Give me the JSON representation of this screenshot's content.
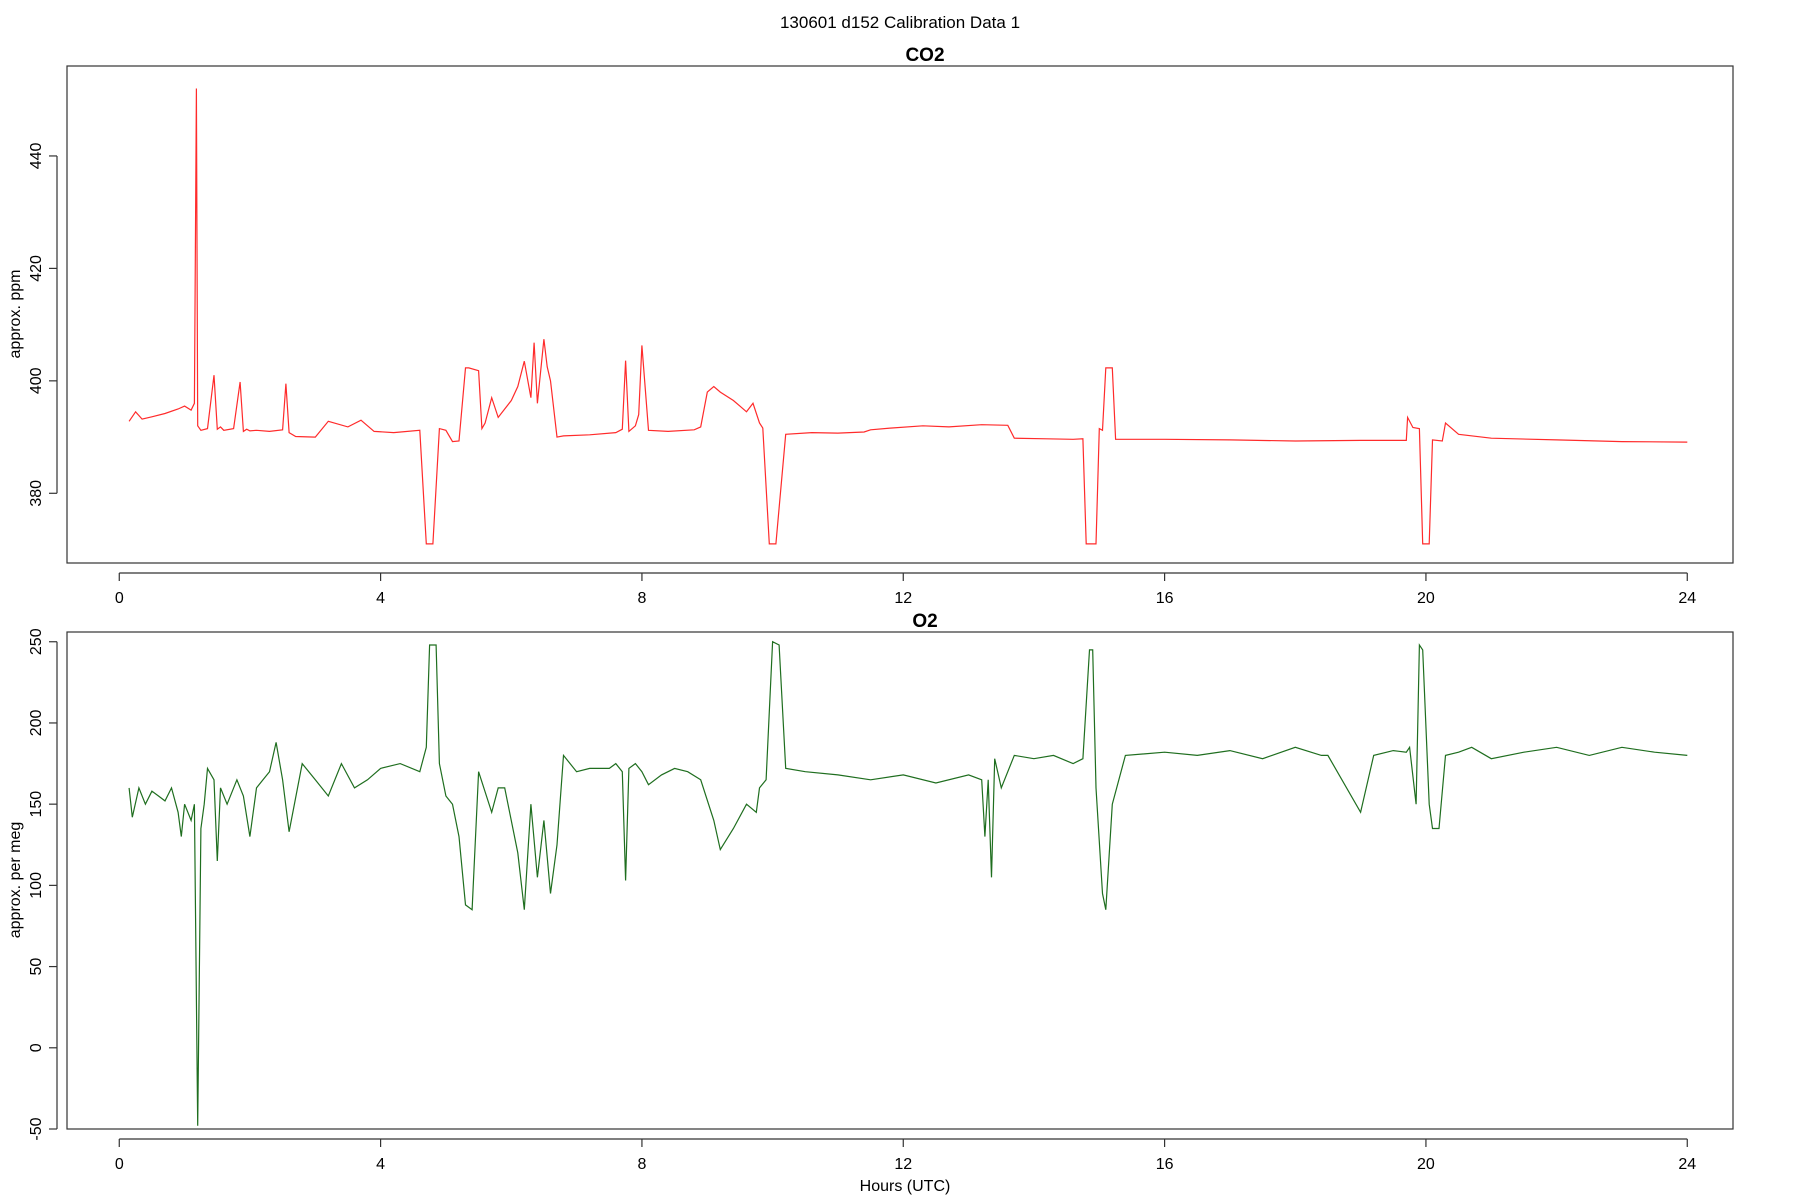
{
  "page": {
    "suptitle": "130601   d152   Calibration Data 1"
  },
  "chart_data": [
    {
      "type": "line",
      "title": "CO2",
      "xlabel": "",
      "ylabel": "approx. ppm",
      "xlim": [
        -0.8,
        24.7
      ],
      "ylim": [
        367.6,
        456
      ],
      "xticks": [
        0,
        4,
        8,
        12,
        16,
        20,
        24
      ],
      "yticks": [
        380,
        400,
        420,
        440
      ],
      "grid": false,
      "color": "#ff2b2b",
      "x": [
        0.15,
        0.25,
        0.35,
        0.5,
        0.7,
        0.9,
        1.0,
        1.1,
        1.15,
        1.18,
        1.2,
        1.25,
        1.35,
        1.45,
        1.5,
        1.55,
        1.6,
        1.75,
        1.85,
        1.9,
        1.95,
        2.0,
        2.1,
        2.3,
        2.5,
        2.55,
        2.6,
        2.7,
        3.0,
        3.2,
        3.5,
        3.7,
        3.9,
        4.2,
        4.6,
        4.7,
        4.8,
        4.9,
        5.0,
        5.1,
        5.2,
        5.3,
        5.35,
        5.5,
        5.55,
        5.6,
        5.7,
        5.8,
        5.9,
        6.0,
        6.1,
        6.2,
        6.3,
        6.35,
        6.4,
        6.5,
        6.55,
        6.6,
        6.7,
        6.8,
        7.2,
        7.6,
        7.7,
        7.75,
        7.8,
        7.9,
        7.95,
        8.0,
        8.1,
        8.4,
        8.8,
        8.9,
        9.0,
        9.1,
        9.2,
        9.4,
        9.5,
        9.6,
        9.7,
        9.8,
        9.85,
        9.95,
        10.05,
        10.2,
        10.6,
        11.0,
        11.4,
        11.5,
        11.8,
        12.3,
        12.7,
        13.2,
        13.6,
        13.7,
        14.2,
        14.6,
        14.75,
        14.8,
        14.95,
        15.0,
        15.05,
        15.1,
        15.2,
        15.25,
        16.0,
        17.0,
        18.0,
        19.0,
        19.7,
        19.72,
        19.8,
        19.9,
        19.95,
        20.05,
        20.1,
        20.25,
        20.3,
        20.5,
        21.0,
        22.0,
        23.0,
        24.0
      ],
      "y": [
        392.8,
        394.5,
        393.2,
        393.6,
        394.2,
        395.0,
        395.5,
        394.8,
        396.0,
        452.0,
        392.0,
        391.2,
        391.5,
        401.0,
        391.4,
        391.8,
        391.2,
        391.5,
        399.8,
        391.0,
        391.4,
        391.1,
        391.2,
        391.0,
        391.3,
        399.5,
        390.8,
        390.1,
        390.0,
        392.8,
        391.8,
        393.0,
        391.0,
        390.8,
        391.2,
        371.0,
        371.0,
        391.5,
        391.2,
        389.2,
        389.3,
        402.3,
        402.3,
        401.8,
        391.5,
        392.5,
        397.0,
        393.5,
        395.0,
        396.5,
        399.0,
        403.5,
        397.0,
        406.8,
        396.0,
        407.4,
        402.5,
        400.0,
        390.0,
        390.2,
        390.4,
        390.8,
        391.4,
        403.6,
        391.0,
        392.0,
        394.0,
        406.3,
        391.2,
        391.0,
        391.3,
        391.8,
        398.0,
        399.0,
        398.0,
        396.5,
        395.5,
        394.5,
        396.0,
        392.5,
        391.6,
        371.0,
        371.0,
        390.5,
        390.8,
        390.7,
        390.9,
        391.3,
        391.6,
        392.0,
        391.8,
        392.2,
        392.1,
        389.8,
        389.7,
        389.6,
        389.7,
        371.0,
        371.0,
        391.5,
        391.2,
        402.3,
        402.3,
        389.6,
        389.6,
        389.5,
        389.3,
        389.4,
        389.4,
        393.5,
        391.7,
        391.5,
        371.0,
        371.0,
        389.5,
        389.3,
        392.5,
        390.5,
        389.8,
        389.5,
        389.2,
        389.1
      ]
    },
    {
      "type": "line",
      "title": "O2",
      "xlabel": "Hours (UTC)",
      "ylabel": "approx. per meg",
      "xlim": [
        -0.8,
        24.7
      ],
      "ylim": [
        -50,
        256
      ],
      "xticks": [
        0,
        4,
        8,
        12,
        16,
        20,
        24
      ],
      "yticks": [
        -50,
        0,
        50,
        100,
        150,
        200,
        250
      ],
      "grid": false,
      "color": "#1f6e1f",
      "x": [
        0.15,
        0.2,
        0.3,
        0.4,
        0.5,
        0.6,
        0.7,
        0.8,
        0.9,
        0.95,
        1.0,
        1.1,
        1.15,
        1.2,
        1.25,
        1.3,
        1.35,
        1.45,
        1.5,
        1.55,
        1.65,
        1.8,
        1.9,
        2.0,
        2.1,
        2.2,
        2.3,
        2.4,
        2.5,
        2.6,
        2.8,
        3.0,
        3.2,
        3.4,
        3.6,
        3.8,
        4.0,
        4.3,
        4.6,
        4.7,
        4.75,
        4.85,
        4.9,
        5.0,
        5.1,
        5.2,
        5.3,
        5.4,
        5.5,
        5.7,
        5.8,
        5.9,
        6.1,
        6.2,
        6.3,
        6.4,
        6.5,
        6.6,
        6.7,
        6.8,
        7.0,
        7.2,
        7.5,
        7.6,
        7.7,
        7.75,
        7.8,
        7.9,
        8.0,
        8.1,
        8.3,
        8.5,
        8.7,
        8.9,
        9.1,
        9.2,
        9.4,
        9.6,
        9.75,
        9.8,
        9.9,
        10.0,
        10.1,
        10.2,
        10.5,
        11.0,
        11.5,
        12.0,
        12.5,
        13.0,
        13.2,
        13.25,
        13.3,
        13.35,
        13.4,
        13.5,
        13.7,
        14.0,
        14.3,
        14.6,
        14.75,
        14.85,
        14.9,
        14.95,
        15.05,
        15.1,
        15.2,
        15.4,
        16.0,
        16.5,
        17.0,
        17.5,
        18.0,
        18.4,
        18.5,
        19.0,
        19.2,
        19.5,
        19.7,
        19.75,
        19.85,
        19.9,
        19.95,
        20.05,
        20.1,
        20.2,
        20.3,
        20.5,
        20.7,
        21.0,
        21.5,
        22.0,
        22.5,
        23.0,
        23.5,
        24.0
      ],
      "y": [
        160,
        142,
        160,
        150,
        158,
        155,
        152,
        160,
        145,
        130,
        150,
        140,
        150,
        -48,
        135,
        150,
        172,
        165,
        115,
        160,
        150,
        165,
        155,
        130,
        160,
        165,
        170,
        188,
        165,
        133,
        175,
        165,
        155,
        175,
        160,
        165,
        172,
        175,
        170,
        185,
        248,
        248,
        175,
        155,
        150,
        130,
        88,
        85,
        170,
        145,
        160,
        160,
        120,
        85,
        150,
        105,
        140,
        95,
        125,
        180,
        170,
        172,
        172,
        175,
        170,
        103,
        172,
        175,
        170,
        162,
        168,
        172,
        170,
        165,
        140,
        122,
        135,
        150,
        145,
        160,
        165,
        250,
        248,
        172,
        170,
        168,
        165,
        168,
        163,
        168,
        165,
        130,
        165,
        105,
        178,
        160,
        180,
        178,
        180,
        175,
        178,
        245,
        245,
        160,
        95,
        85,
        150,
        180,
        182,
        180,
        183,
        178,
        185,
        180,
        180,
        145,
        180,
        183,
        182,
        185,
        150,
        248,
        245,
        150,
        135,
        135,
        180,
        182,
        185,
        178,
        182,
        185,
        180,
        185,
        182,
        180
      ]
    }
  ]
}
